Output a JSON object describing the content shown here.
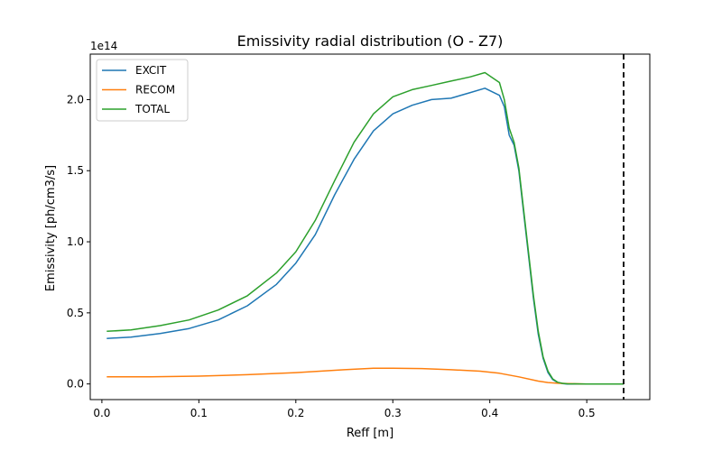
{
  "chart_data": {
    "type": "line",
    "title": "Emissivity radial distribution (O - Z7)",
    "xlabel": "Reff [m]",
    "ylabel": "Emissivity [ph/cm3/s]",
    "y_offset_label": "1e14",
    "xlim": [
      -0.012,
      0.565
    ],
    "ylim": [
      -0.11,
      2.32
    ],
    "x_ticks": [
      0.0,
      0.1,
      0.2,
      0.3,
      0.4,
      0.5
    ],
    "x_tick_labels": [
      "0.0",
      "0.1",
      "0.2",
      "0.3",
      "0.4",
      "0.5"
    ],
    "y_ticks": [
      0.0,
      0.5,
      1.0,
      1.5,
      2.0
    ],
    "y_tick_labels": [
      "0.0",
      "0.5",
      "1.0",
      "1.5",
      "2.0"
    ],
    "legend_position": "top-left",
    "grid": false,
    "vline": {
      "x": 0.538,
      "style": "dashed",
      "color": "#000000"
    },
    "series": [
      {
        "name": "EXCIT",
        "color": "#1f77b4",
        "x": [
          0.005,
          0.03,
          0.06,
          0.09,
          0.12,
          0.15,
          0.18,
          0.2,
          0.22,
          0.24,
          0.26,
          0.28,
          0.3,
          0.32,
          0.34,
          0.36,
          0.38,
          0.395,
          0.41,
          0.415,
          0.42,
          0.425,
          0.43,
          0.435,
          0.44,
          0.445,
          0.45,
          0.455,
          0.46,
          0.465,
          0.47,
          0.475,
          0.48,
          0.5,
          0.52,
          0.538
        ],
        "values": [
          0.32,
          0.33,
          0.355,
          0.39,
          0.45,
          0.55,
          0.7,
          0.85,
          1.05,
          1.33,
          1.58,
          1.78,
          1.9,
          1.96,
          2.0,
          2.01,
          2.05,
          2.08,
          2.03,
          1.95,
          1.75,
          1.68,
          1.5,
          1.2,
          0.9,
          0.6,
          0.35,
          0.18,
          0.08,
          0.03,
          0.01,
          0.003,
          0.0,
          0.0,
          0.0,
          0.0
        ]
      },
      {
        "name": "RECOM",
        "color": "#ff7f0e",
        "x": [
          0.005,
          0.05,
          0.1,
          0.15,
          0.2,
          0.25,
          0.28,
          0.3,
          0.33,
          0.36,
          0.39,
          0.41,
          0.43,
          0.45,
          0.46,
          0.47,
          0.48,
          0.5,
          0.52,
          0.538
        ],
        "values": [
          0.05,
          0.05,
          0.055,
          0.065,
          0.08,
          0.1,
          0.11,
          0.11,
          0.108,
          0.1,
          0.09,
          0.075,
          0.05,
          0.02,
          0.01,
          0.005,
          0.002,
          0.0,
          0.0,
          0.0
        ]
      },
      {
        "name": "TOTAL",
        "color": "#2ca02c",
        "x": [
          0.005,
          0.03,
          0.06,
          0.09,
          0.12,
          0.15,
          0.18,
          0.2,
          0.22,
          0.24,
          0.26,
          0.28,
          0.3,
          0.32,
          0.34,
          0.36,
          0.38,
          0.395,
          0.41,
          0.415,
          0.42,
          0.425,
          0.43,
          0.435,
          0.44,
          0.445,
          0.45,
          0.455,
          0.46,
          0.465,
          0.47,
          0.475,
          0.48,
          0.5,
          0.52,
          0.538
        ],
        "values": [
          0.37,
          0.38,
          0.41,
          0.45,
          0.52,
          0.62,
          0.78,
          0.93,
          1.15,
          1.43,
          1.7,
          1.9,
          2.02,
          2.07,
          2.1,
          2.13,
          2.16,
          2.19,
          2.12,
          2.0,
          1.8,
          1.7,
          1.52,
          1.22,
          0.92,
          0.62,
          0.37,
          0.19,
          0.09,
          0.035,
          0.012,
          0.004,
          0.001,
          0.0,
          0.0,
          0.0
        ]
      }
    ]
  }
}
